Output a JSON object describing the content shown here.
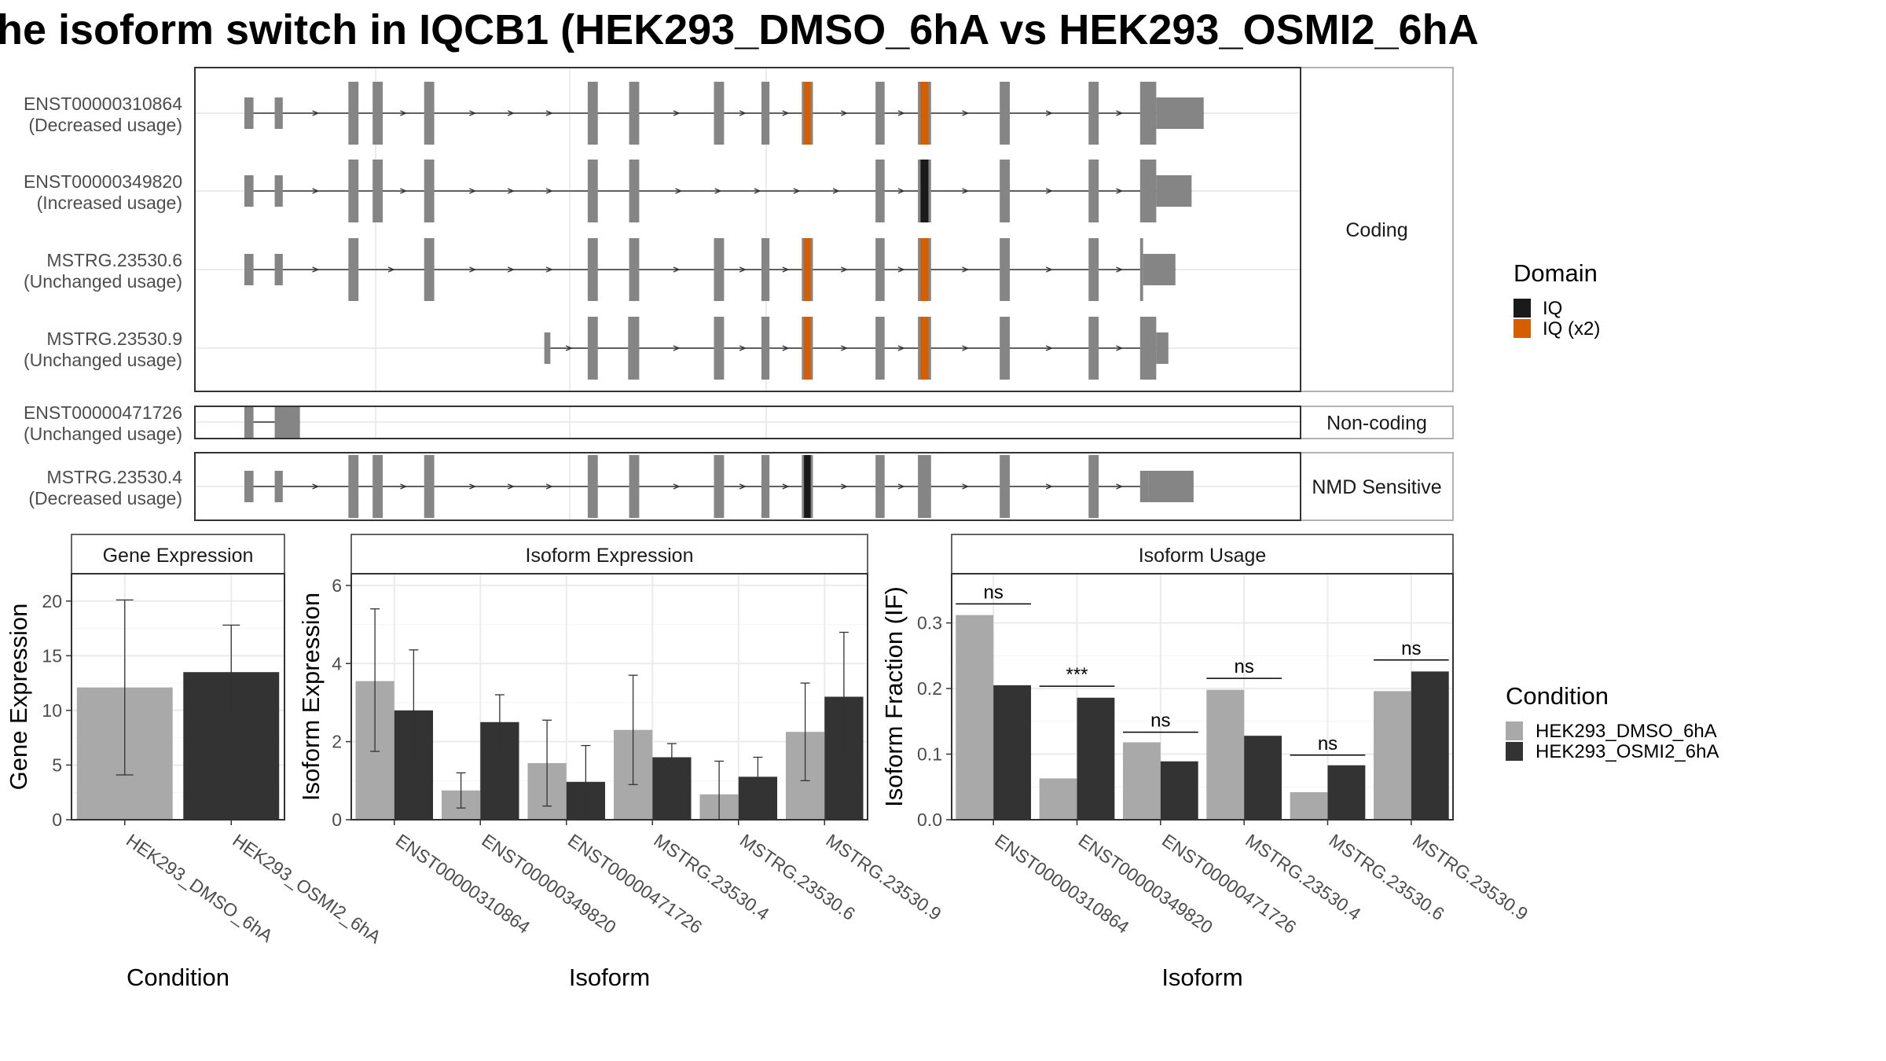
{
  "title": "he isoform switch in IQCB1 (HEK293_DMSO_6hA vs HEK293_OSMI2_6hA",
  "colors": {
    "exon": "#858585",
    "cond1": "#a9a9a9",
    "cond2": "#333333",
    "domain_iq": "#1a1a1a",
    "domain_iq2": "#d55e00",
    "grid": "#ebebeb",
    "panel_border": "#333333",
    "strip_border": "#999999"
  },
  "structure": {
    "facets": [
      {
        "label": "Coding",
        "transcripts": [
          {
            "id": "ENST00000310864",
            "usage": "(Decreased usage)",
            "exons": [
              [
                0.0,
                0.009
              ],
              [
                0.03,
                0.038
              ],
              [
                0.103,
                0.113
              ],
              [
                0.127,
                0.137
              ],
              [
                0.178,
                0.188
              ],
              [
                0.34,
                0.35
              ],
              [
                0.381,
                0.391
              ],
              [
                0.465,
                0.475
              ],
              [
                0.512,
                0.52
              ],
              [
                0.552,
                0.563,
                "IQ (x2)"
              ],
              [
                0.625,
                0.634
              ],
              [
                0.667,
                0.68,
                "IQ (x2)"
              ],
              [
                0.748,
                0.758
              ],
              [
                0.836,
                0.846
              ],
              [
                0.887,
                0.903
              ],
              [
                0.903,
                0.95
              ]
            ],
            "utr": [
              [
                0.0,
                0.009
              ],
              [
                0.03,
                0.038
              ],
              [
                0.903,
                0.95
              ]
            ]
          },
          {
            "id": "ENST00000349820",
            "usage": "(Increased usage)",
            "exons": [
              [
                0.0,
                0.009
              ],
              [
                0.03,
                0.038
              ],
              [
                0.103,
                0.113
              ],
              [
                0.127,
                0.137
              ],
              [
                0.178,
                0.188
              ],
              [
                0.34,
                0.35
              ],
              [
                0.381,
                0.391
              ],
              [
                0.625,
                0.634
              ],
              [
                0.667,
                0.68,
                "IQ"
              ],
              [
                0.748,
                0.758
              ],
              [
                0.836,
                0.846
              ],
              [
                0.887,
                0.903
              ],
              [
                0.903,
                0.938
              ]
            ],
            "utr": [
              [
                0.0,
                0.009
              ],
              [
                0.03,
                0.038
              ],
              [
                0.903,
                0.938
              ]
            ]
          },
          {
            "id": "MSTRG.23530.6",
            "usage": "(Unchanged usage)",
            "exons": [
              [
                0.0,
                0.009
              ],
              [
                0.03,
                0.038
              ],
              [
                0.103,
                0.113
              ],
              [
                0.178,
                0.188
              ],
              [
                0.34,
                0.35
              ],
              [
                0.381,
                0.391
              ],
              [
                0.465,
                0.475
              ],
              [
                0.512,
                0.52
              ],
              [
                0.552,
                0.563,
                "IQ (x2)"
              ],
              [
                0.625,
                0.634
              ],
              [
                0.667,
                0.68,
                "IQ (x2)"
              ],
              [
                0.748,
                0.758
              ],
              [
                0.836,
                0.846
              ],
              [
                0.887,
                0.89
              ],
              [
                0.89,
                0.922
              ]
            ],
            "utr": [
              [
                0.0,
                0.009
              ],
              [
                0.03,
                0.038
              ],
              [
                0.89,
                0.922
              ]
            ]
          },
          {
            "id": "MSTRG.23530.9",
            "usage": "(Unchanged usage)",
            "exons": [
              [
                0.297,
                0.303
              ],
              [
                0.34,
                0.35
              ],
              [
                0.38,
                0.391
              ],
              [
                0.465,
                0.475
              ],
              [
                0.512,
                0.52
              ],
              [
                0.552,
                0.563,
                "IQ (x2)"
              ],
              [
                0.625,
                0.634
              ],
              [
                0.667,
                0.68,
                "IQ (x2)"
              ],
              [
                0.748,
                0.758
              ],
              [
                0.836,
                0.846
              ],
              [
                0.887,
                0.903
              ],
              [
                0.903,
                0.915
              ]
            ],
            "utr": [
              [
                0.297,
                0.303
              ],
              [
                0.903,
                0.915
              ]
            ]
          }
        ]
      },
      {
        "label": "Non-coding",
        "transcripts": [
          {
            "id": "ENST00000471726",
            "usage": "(Unchanged usage)",
            "exons": [
              [
                0.0,
                0.009
              ],
              [
                0.03,
                0.055
              ]
            ],
            "utr": [
              [
                0.0,
                0.009
              ],
              [
                0.03,
                0.055
              ]
            ],
            "arrows": false
          }
        ]
      },
      {
        "label": "NMD Sensitive",
        "transcripts": [
          {
            "id": "MSTRG.23530.4",
            "usage": "(Decreased usage)",
            "exons": [
              [
                0.0,
                0.009
              ],
              [
                0.03,
                0.038
              ],
              [
                0.103,
                0.113
              ],
              [
                0.127,
                0.137
              ],
              [
                0.178,
                0.188
              ],
              [
                0.34,
                0.35
              ],
              [
                0.381,
                0.391
              ],
              [
                0.465,
                0.475
              ],
              [
                0.512,
                0.52
              ],
              [
                0.552,
                0.563,
                "IQ"
              ],
              [
                0.625,
                0.634
              ],
              [
                0.667,
                0.68
              ],
              [
                0.748,
                0.758
              ],
              [
                0.836,
                0.846
              ],
              [
                0.887,
                0.895
              ],
              [
                0.895,
                0.94
              ]
            ],
            "utr": [
              [
                0.0,
                0.009
              ],
              [
                0.03,
                0.038
              ],
              [
                0.887,
                0.895
              ],
              [
                0.895,
                0.94
              ]
            ]
          }
        ]
      }
    ]
  },
  "domain_legend": {
    "title": "Domain",
    "items": [
      {
        "label": "IQ",
        "color": "#1a1a1a"
      },
      {
        "label": "IQ (x2)",
        "color": "#d55e00"
      }
    ]
  },
  "condition_legend": {
    "title": "Condition",
    "items": [
      {
        "label": "HEK293_DMSO_6hA",
        "color": "#a9a9a9"
      },
      {
        "label": "HEK293_OSMI2_6hA",
        "color": "#333333"
      }
    ]
  },
  "chart_data": [
    {
      "type": "bar",
      "title": "Gene Expression",
      "xlabel": "Condition",
      "ylabel": "Gene Expression",
      "categories": [
        "HEK293_DMSO_6hA",
        "HEK293_OSMI2_6hA"
      ],
      "values": [
        12.1,
        13.5
      ],
      "err_low": [
        4.1,
        9.2
      ],
      "err_high": [
        20.1,
        17.8
      ],
      "ylim": [
        0,
        22.5
      ],
      "yticks": [
        0,
        5,
        10,
        15,
        20
      ]
    },
    {
      "type": "bar",
      "title": "Isoform Expression",
      "xlabel": "Isoform",
      "ylabel": "Isoform Expression",
      "categories": [
        "ENST00000310864",
        "ENST00000349820",
        "ENST00000471726",
        "MSTRG.23530.4",
        "MSTRG.23530.6",
        "MSTRG.23530.9"
      ],
      "series": [
        {
          "name": "HEK293_DMSO_6hA",
          "values": [
            3.55,
            0.75,
            1.45,
            2.3,
            0.65,
            2.25
          ],
          "err_low": [
            1.75,
            0.3,
            0.35,
            0.9,
            0.0,
            1.0
          ],
          "err_high": [
            5.4,
            1.2,
            2.55,
            3.7,
            1.5,
            3.5
          ]
        },
        {
          "name": "HEK293_OSMI2_6hA",
          "values": [
            2.8,
            2.5,
            0.97,
            1.6,
            1.1,
            3.15
          ],
          "err_low": [
            1.3,
            1.8,
            0.0,
            1.3,
            0.6,
            1.5
          ],
          "err_high": [
            4.35,
            3.2,
            1.9,
            1.95,
            1.6,
            4.8
          ]
        }
      ],
      "ylim": [
        0,
        6.3
      ],
      "yticks": [
        0,
        2,
        4,
        6
      ]
    },
    {
      "type": "bar",
      "title": "Isoform Usage",
      "xlabel": "Isoform",
      "ylabel": "Isoform Fraction (IF)",
      "categories": [
        "ENST00000310864",
        "ENST00000349820",
        "ENST00000471726",
        "MSTRG.23530.4",
        "MSTRG.23530.6",
        "MSTRG.23530.9"
      ],
      "series": [
        {
          "name": "HEK293_DMSO_6hA",
          "values": [
            0.312,
            0.063,
            0.118,
            0.198,
            0.042,
            0.196
          ]
        },
        {
          "name": "HEK293_OSMI2_6hA",
          "values": [
            0.205,
            0.186,
            0.089,
            0.128,
            0.083,
            0.226
          ]
        }
      ],
      "significance": [
        "ns",
        "***",
        "ns",
        "ns",
        "ns",
        "ns"
      ],
      "sig_y": [
        0.329,
        0.2035,
        0.1335,
        0.2155,
        0.0985,
        0.2435
      ],
      "ylim": [
        0,
        0.375
      ],
      "yticks": [
        0,
        0.1,
        0.2,
        0.3
      ],
      "ytick_labels": [
        "0.0",
        "0.1",
        "0.2",
        "0.3"
      ]
    }
  ]
}
